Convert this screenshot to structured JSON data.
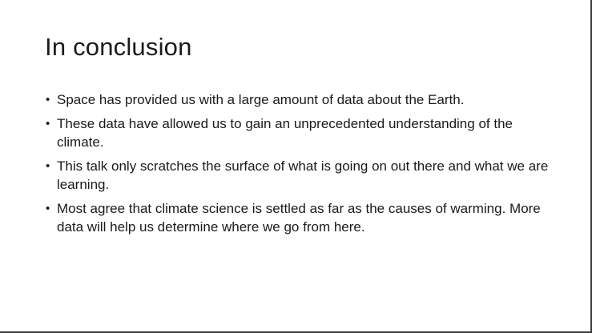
{
  "slide": {
    "title": "In conclusion",
    "bullet_glyph": "•",
    "bullets": [
      "Space has provided us with a large amount of data about the Earth.",
      "These data have allowed us to gain an unprecedented understanding of the climate.",
      "This talk only scratches the surface of what is going on out there and what we are learning.",
      "Most agree that climate science is settled as far as the causes of warming.  More data will help us determine where we go from here."
    ]
  }
}
